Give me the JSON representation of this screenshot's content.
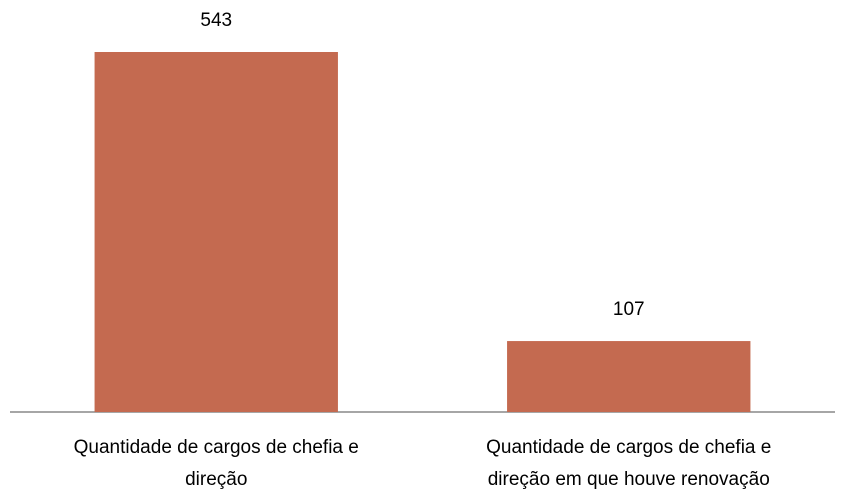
{
  "chart_data": {
    "type": "bar",
    "categories": [
      "Quantidade de cargos de chefia e direção",
      "Quantidade de cargos de chefia e direção em que houve renovação"
    ],
    "values": [
      543,
      107
    ],
    "color": "#c46a50"
  }
}
